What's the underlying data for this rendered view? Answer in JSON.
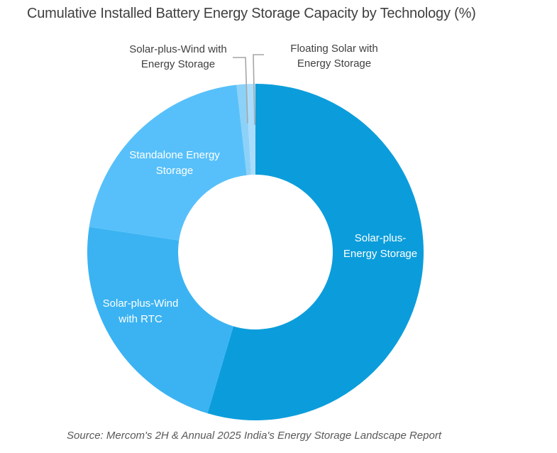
{
  "title": "Cumulative Installed Battery Energy Storage Capacity by Technology (%)",
  "source": "Source: Mercom's 2H & Annual 2025 India's Energy Storage Landscape Report",
  "colors": {
    "background": "#FFFFFF",
    "title_text": "#3F3F3F",
    "outside_label_text": "#404040",
    "inside_label_text": "#FFFFFF",
    "source_text": "#595959",
    "leader_line": "#A6A6A6"
  },
  "chart_data": {
    "type": "pie",
    "subtype": "donut",
    "title": "Cumulative Installed Battery Energy Storage Capacity by Technology (%)",
    "unit": "percent",
    "direction": "clockwise",
    "start_angle_deg": 0,
    "inner_radius_ratio": 0.46,
    "legend_position": "none",
    "data_labels_shown": false,
    "slices": [
      {
        "label": "Solar-plus-Energy Storage",
        "value": 54.6,
        "color": "#0B9DDB",
        "label_lines": [
          "Solar-plus-",
          "Energy Storage"
        ],
        "label_placement": "inside"
      },
      {
        "label": "Solar-plus-Wind with RTC",
        "value": 22.8,
        "color": "#3BB3F2",
        "label_lines": [
          "Solar-plus-Wind",
          "with RTC"
        ],
        "label_placement": "inside"
      },
      {
        "label": "Standalone Energy Storage",
        "value": 20.8,
        "color": "#57C0FA",
        "label_lines": [
          "Standalone Energy",
          "Storage"
        ],
        "label_placement": "inside"
      },
      {
        "label": "Solar-plus-Wind with Energy Storage",
        "value": 0.9,
        "color": "#8CD1F8",
        "label_lines": [
          "Solar-plus-Wind with",
          "Energy Storage"
        ],
        "label_placement": "outside"
      },
      {
        "label": "Floating Solar with Energy Storage",
        "value": 0.9,
        "color": "#AADDFB",
        "label_lines": [
          "Floating Solar with",
          "Energy Storage"
        ],
        "label_placement": "outside"
      }
    ]
  }
}
